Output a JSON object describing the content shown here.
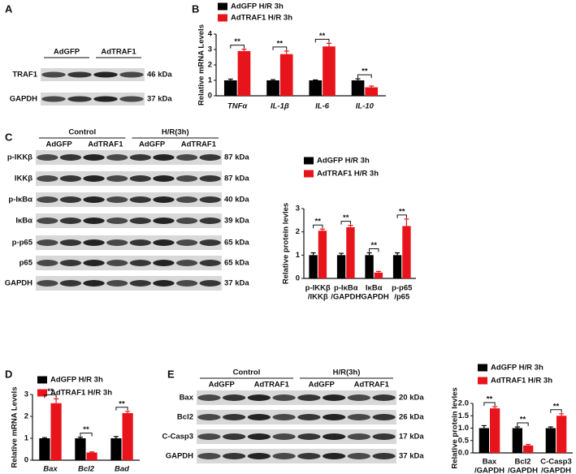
{
  "panel_labels": [
    "A",
    "B",
    "C",
    "D",
    "E"
  ],
  "blots": [
    {
      "groups": [
        "AdGFP",
        "AdTRAF1"
      ],
      "rows": [
        {
          "protein": "TRAF1",
          "size": "46 kDa"
        },
        {
          "protein": "GAPDH",
          "size": "37 kDa"
        }
      ]
    },
    {
      "groups": [
        "Control",
        "H/R(3h)"
      ],
      "subgroups": [
        "AdGFP",
        "AdTRAF1",
        "AdGFP",
        "AdTRAF1"
      ],
      "rows": [
        {
          "protein": "p-IKKβ",
          "size": "87 kDa"
        },
        {
          "protein": "IKKβ",
          "size": "87 kDa"
        },
        {
          "protein": "p-IκBα",
          "size": "40 kDa"
        },
        {
          "protein": "IκBα",
          "size": "39 kDa"
        },
        {
          "protein": "p-p65",
          "size": "65 kDa"
        },
        {
          "protein": "p65",
          "size": "65 kDa"
        },
        {
          "protein": "GAPDH",
          "size": "37 kDa"
        }
      ]
    },
    {
      "groups": [
        "Control",
        "H/R(3h)"
      ],
      "subgroups": [
        "AdGFP",
        "AdTRAF1",
        "AdGFP",
        "AdTRAF1"
      ],
      "rows": [
        {
          "protein": "Bax",
          "size": "20 kDa"
        },
        {
          "protein": "Bcl2",
          "size": "26 kDa"
        },
        {
          "protein": "C-Casp3",
          "size": "17 kDa"
        },
        {
          "protein": "GAPDH",
          "size": "37 kDa"
        }
      ]
    }
  ],
  "chart_data": [
    {
      "type": "bar",
      "ylabel": "Relative mRNA Levels",
      "categories": [
        "TNFα",
        "IL-1β",
        "IL-6",
        "IL-10"
      ],
      "italic_categories": true,
      "series": [
        {
          "name": "AdGFP H/R 3h",
          "color": "#000000",
          "values": [
            1.0,
            1.0,
            1.0,
            1.0
          ],
          "errors": [
            0.08,
            0.05,
            0.03,
            0.1
          ]
        },
        {
          "name": "AdTRAF1 H/R 3h",
          "color": "#e8141b",
          "values": [
            2.9,
            2.7,
            3.2,
            0.55
          ],
          "errors": [
            0.12,
            0.2,
            0.2,
            0.08
          ]
        }
      ],
      "significance": [
        "**",
        "**",
        "**",
        "**"
      ],
      "ylim": [
        0,
        4
      ],
      "yticks": [
        0,
        1,
        2,
        3,
        4
      ]
    },
    {
      "type": "bar",
      "ylabel": "Relative protein levles",
      "categories": [
        [
          "p-IKKβ",
          "/IKKβ"
        ],
        [
          "p-IκBα",
          "/GAPDH"
        ],
        [
          "IκBα",
          "/GAPDH"
        ],
        [
          "p-p65",
          "/p65"
        ]
      ],
      "italic_categories": false,
      "series": [
        {
          "name": "AdGFP H/R 3h",
          "color": "#000000",
          "values": [
            1.0,
            1.0,
            1.0,
            1.0
          ],
          "errors": [
            0.1,
            0.08,
            0.1,
            0.1
          ]
        },
        {
          "name": "AdTRAF1 H/R 3h",
          "color": "#e8141b",
          "values": [
            2.05,
            2.2,
            0.25,
            2.25
          ],
          "errors": [
            0.07,
            0.08,
            0.05,
            0.3
          ]
        }
      ],
      "significance": [
        "**",
        "**",
        "**",
        "**"
      ],
      "ylim": [
        0,
        3
      ],
      "yticks": [
        0,
        1,
        2,
        3
      ]
    },
    {
      "type": "bar",
      "ylabel": "Relative mRNA Levels",
      "categories": [
        "Bax",
        "Bcl2",
        "Bad"
      ],
      "italic_categories": true,
      "series": [
        {
          "name": "AdGFP H/R 3h",
          "color": "#000000",
          "values": [
            1.0,
            1.0,
            1.0
          ],
          "errors": [
            0.03,
            0.05,
            0.08
          ]
        },
        {
          "name": "AdTRAF1 H/R 3h",
          "color": "#e8141b",
          "values": [
            2.6,
            0.35,
            2.15
          ],
          "errors": [
            0.2,
            0.03,
            0.08
          ]
        }
      ],
      "significance": [
        "**",
        "**",
        "**"
      ],
      "ylim": [
        0,
        3
      ],
      "yticks": [
        0,
        1,
        2,
        3
      ]
    },
    {
      "type": "bar",
      "ylabel": "Relative protein levles",
      "categories": [
        [
          "Bax",
          "/GAPDH"
        ],
        [
          "Bcl2",
          "/GAPDH"
        ],
        [
          "C-Casp3",
          "/GAPDH"
        ]
      ],
      "italic_categories": false,
      "series": [
        {
          "name": "AdGFP H/R 3h",
          "color": "#000000",
          "values": [
            1.0,
            1.0,
            1.0
          ],
          "errors": [
            0.1,
            0.05,
            0.05
          ]
        },
        {
          "name": "AdTRAF1 H/R 3h",
          "color": "#e8141b",
          "values": [
            1.8,
            0.3,
            1.5
          ],
          "errors": [
            0.07,
            0.04,
            0.08
          ]
        }
      ],
      "significance": [
        "**",
        "**",
        "**"
      ],
      "ylim": [
        0,
        2.0
      ],
      "yticks": [
        {
          "value": 0,
          "label": "0.0"
        },
        0.5,
        {
          "value": 1,
          "label": "1.0"
        },
        1.5,
        {
          "value": 2,
          "label": "2.0"
        }
      ]
    }
  ]
}
